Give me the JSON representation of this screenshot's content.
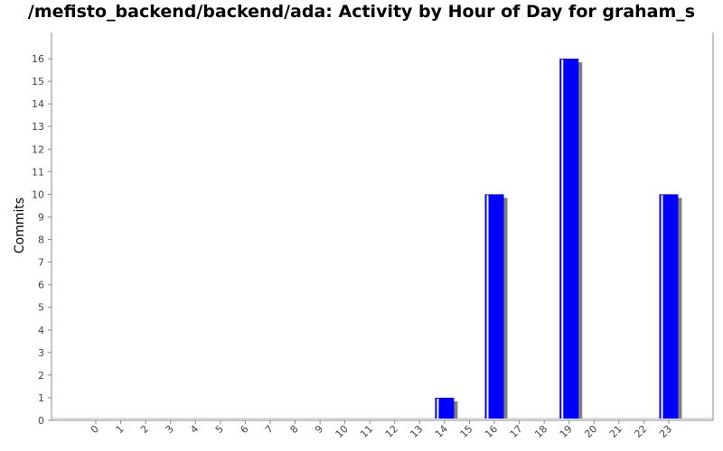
{
  "chart_data": {
    "type": "bar",
    "title": "/mefisto_backend/backend/ada: Activity by Hour of Day for graham_s",
    "xlabel": "",
    "ylabel": "Commits",
    "categories": [
      "0",
      "1",
      "2",
      "3",
      "4",
      "5",
      "6",
      "7",
      "8",
      "9",
      "10",
      "11",
      "12",
      "13",
      "14",
      "15",
      "16",
      "17",
      "18",
      "19",
      "20",
      "21",
      "22",
      "23"
    ],
    "values": [
      0,
      0,
      0,
      0,
      0,
      0,
      0,
      0,
      0,
      0,
      0,
      0,
      0,
      0,
      1,
      0,
      10,
      0,
      0,
      16,
      0,
      0,
      0,
      10
    ],
    "ylim": [
      0,
      17
    ],
    "yticks": [
      0,
      1,
      2,
      3,
      4,
      5,
      6,
      7,
      8,
      9,
      10,
      11,
      12,
      13,
      14,
      15,
      16
    ],
    "grid": false,
    "legend": "none",
    "colors": {
      "bar": "#0000ff",
      "bar_highlight": "#ffffff",
      "bar_shadow": "#808080",
      "axis": "#888888",
      "tick_label": "#444444"
    }
  }
}
